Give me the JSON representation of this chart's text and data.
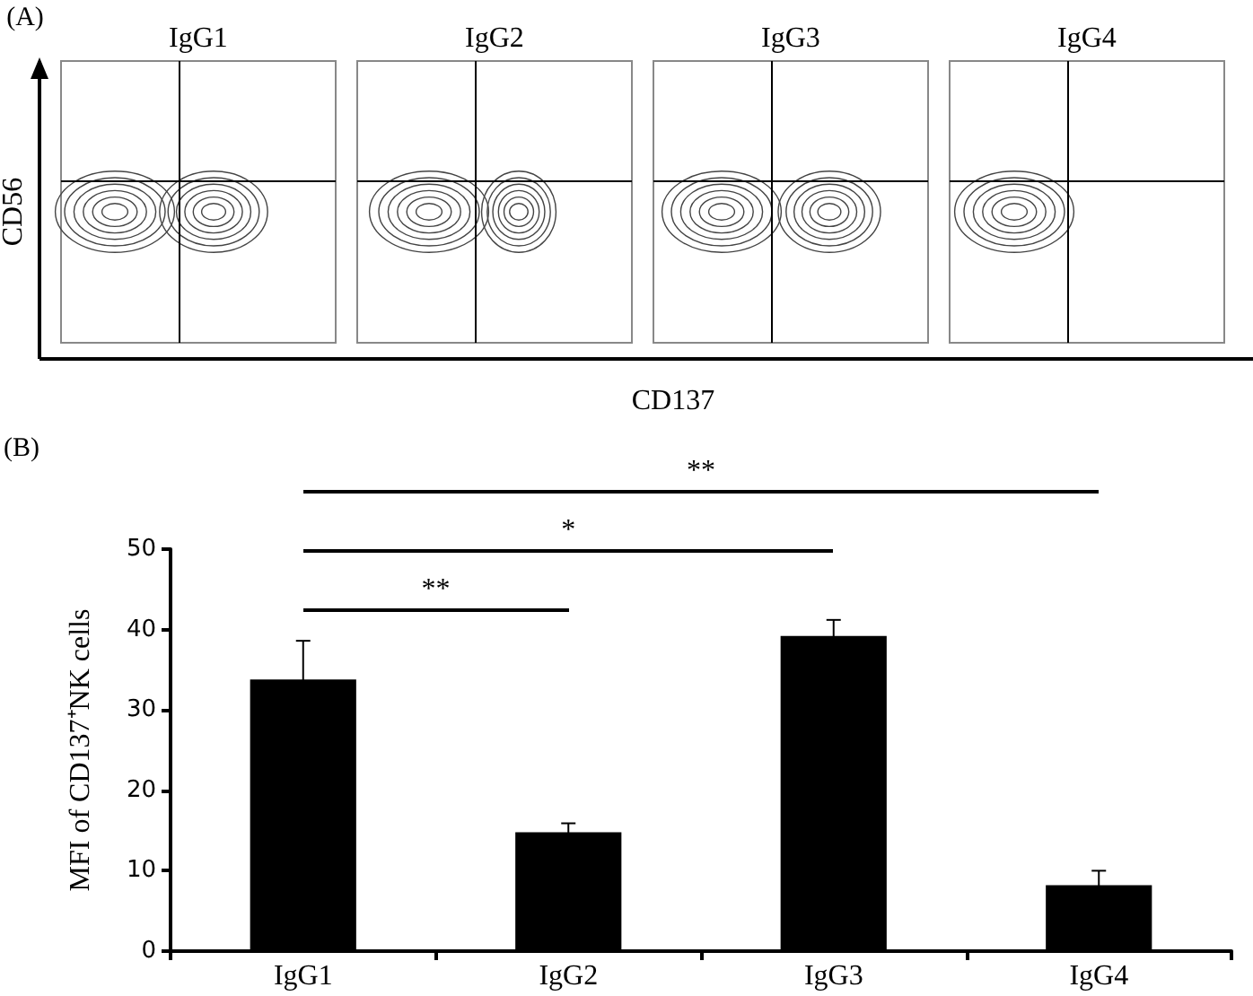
{
  "chart_data": [
    {
      "type": "other",
      "annotations": [
        "(A)"
      ],
      "categories": [
        "IgG1",
        "IgG2",
        "IgG3",
        "IgG4"
      ],
      "xlabel": "CD137",
      "ylabel": "CD56"
    },
    {
      "type": "bar",
      "categories": [
        "IgG1",
        "IgG2",
        "IgG3",
        "IgG4"
      ],
      "series": [
        {
          "color": "#000000",
          "values": [
            33.8,
            14.8,
            39.2,
            8.2
          ],
          "errors": [
            4.8,
            1.1,
            2,
            1.8
          ]
        }
      ],
      "ylabel": "MFI of CD137⁺NK cells",
      "ylim": [
        0,
        50
      ],
      "yticks": [
        0,
        10,
        20,
        30,
        40,
        50
      ],
      "grid": false,
      "annotations": [
        "(B)",
        "**",
        "*",
        "**"
      ]
    }
  ]
}
